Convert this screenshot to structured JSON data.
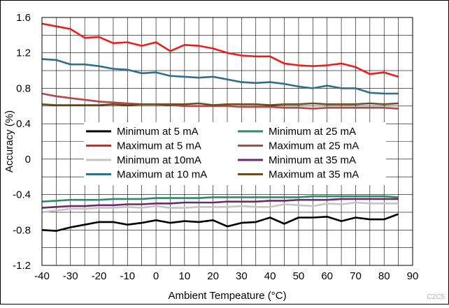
{
  "chart_data": {
    "type": "line",
    "xlabel": "Ambient Tempeature (°C)",
    "ylabel": "Accuracy (%)",
    "xlim": [
      -40,
      90
    ],
    "ylim": [
      -1.2,
      1.6
    ],
    "xticks": [
      -40,
      -30,
      -20,
      -10,
      0,
      10,
      20,
      30,
      40,
      50,
      60,
      70,
      80,
      90
    ],
    "yticks": [
      1.6,
      1.2,
      0.8,
      0.4,
      0,
      -0.4,
      -0.8,
      -1.2
    ],
    "grid": true,
    "legend_position": "center",
    "figure_code": "C2C5",
    "x": [
      -40,
      -35,
      -30,
      -25,
      -20,
      -15,
      -10,
      -5,
      0,
      5,
      10,
      15,
      20,
      25,
      30,
      35,
      40,
      45,
      50,
      55,
      60,
      65,
      70,
      75,
      80,
      85
    ],
    "series": [
      {
        "name": "Minimum at 5 mA",
        "color": "#000000",
        "values": [
          -0.8,
          -0.81,
          -0.77,
          -0.74,
          -0.71,
          -0.71,
          -0.74,
          -0.72,
          -0.69,
          -0.72,
          -0.7,
          -0.71,
          -0.69,
          -0.76,
          -0.72,
          -0.71,
          -0.66,
          -0.73,
          -0.66,
          -0.66,
          -0.65,
          -0.7,
          -0.66,
          -0.68,
          -0.68,
          -0.62
        ]
      },
      {
        "name": "Maximum at 5 mA",
        "color": "#ee1c1c",
        "values": [
          1.53,
          1.5,
          1.47,
          1.37,
          1.38,
          1.31,
          1.32,
          1.28,
          1.32,
          1.22,
          1.29,
          1.28,
          1.25,
          1.2,
          1.17,
          1.16,
          1.16,
          1.08,
          1.06,
          1.05,
          1.06,
          1.08,
          1.04,
          0.96,
          0.98,
          0.93
        ]
      },
      {
        "name": "Minimum at 10mA",
        "color": "#c4c4c4",
        "values": [
          -0.6,
          -0.58,
          -0.56,
          -0.56,
          -0.55,
          -0.55,
          -0.54,
          -0.55,
          -0.53,
          -0.55,
          -0.55,
          -0.54,
          -0.54,
          -0.54,
          -0.53,
          -0.54,
          -0.54,
          -0.51,
          -0.52,
          -0.53,
          -0.5,
          -0.51,
          -0.49,
          -0.5,
          -0.5,
          -0.5
        ]
      },
      {
        "name": "Maximum at 10 mA",
        "color": "#2f6f8a",
        "values": [
          1.13,
          1.12,
          1.07,
          1.07,
          1.05,
          1.02,
          1.01,
          0.97,
          0.98,
          0.94,
          0.93,
          0.92,
          0.93,
          0.9,
          0.87,
          0.86,
          0.87,
          0.85,
          0.82,
          0.8,
          0.83,
          0.8,
          0.8,
          0.75,
          0.74,
          0.74
        ]
      },
      {
        "name": "Minimum at 25 mA",
        "color": "#2e8b67",
        "values": [
          -0.48,
          -0.47,
          -0.46,
          -0.46,
          -0.46,
          -0.45,
          -0.45,
          -0.45,
          -0.44,
          -0.44,
          -0.44,
          -0.44,
          -0.43,
          -0.43,
          -0.43,
          -0.43,
          -0.43,
          -0.43,
          -0.43,
          -0.42,
          -0.42,
          -0.42,
          -0.42,
          -0.42,
          -0.42,
          -0.43
        ]
      },
      {
        "name": "Maximum at 25 mA",
        "color": "#b5474a",
        "values": [
          0.74,
          0.71,
          0.69,
          0.67,
          0.65,
          0.64,
          0.63,
          0.62,
          0.62,
          0.61,
          0.6,
          0.6,
          0.6,
          0.6,
          0.59,
          0.59,
          0.59,
          0.58,
          0.58,
          0.57,
          0.58,
          0.58,
          0.58,
          0.58,
          0.58,
          0.57
        ]
      },
      {
        "name": "Minimum at 35 mA",
        "color": "#6a2a70",
        "values": [
          -0.55,
          -0.54,
          -0.53,
          -0.53,
          -0.52,
          -0.52,
          -0.51,
          -0.51,
          -0.5,
          -0.5,
          -0.49,
          -0.49,
          -0.49,
          -0.48,
          -0.48,
          -0.48,
          -0.47,
          -0.47,
          -0.46,
          -0.46,
          -0.46,
          -0.45,
          -0.45,
          -0.45,
          -0.45,
          -0.45
        ]
      },
      {
        "name": "Maximum at 35 mA",
        "color": "#6b4e1d",
        "values": [
          0.62,
          0.61,
          0.61,
          0.61,
          0.61,
          0.62,
          0.61,
          0.62,
          0.62,
          0.62,
          0.62,
          0.63,
          0.61,
          0.62,
          0.62,
          0.62,
          0.61,
          0.62,
          0.62,
          0.63,
          0.62,
          0.62,
          0.62,
          0.63,
          0.62,
          0.63
        ]
      }
    ]
  }
}
